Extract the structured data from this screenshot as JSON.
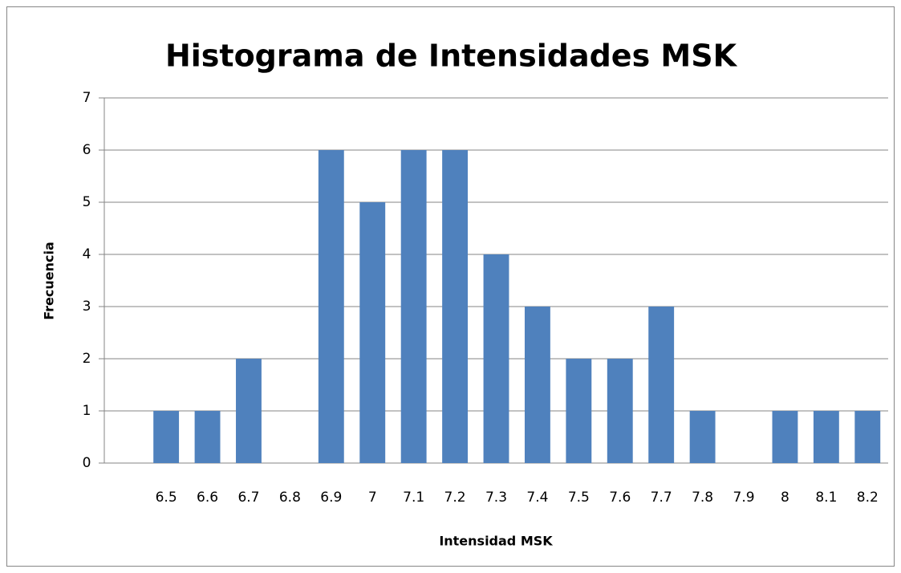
{
  "chart_data": {
    "type": "bar",
    "title": "Histograma de Intensidades MSK",
    "x_label": "Intensidad MSK",
    "y_label": "Frecuencia",
    "categories": [
      null,
      "6.5",
      "6.6",
      "6.7",
      "6.8",
      "6.9",
      "7",
      "7.1",
      "7.2",
      "7.3",
      "7.4",
      "7.5",
      "7.6",
      "7.7",
      "7.8",
      "7.9",
      "8",
      "8.1",
      "8.2"
    ],
    "values": [
      null,
      1,
      1,
      2,
      0,
      6,
      5,
      6,
      6,
      4,
      3,
      2,
      2,
      3,
      1,
      0,
      1,
      1,
      1
    ],
    "color": "#4f81bd",
    "ylim": [
      0,
      7
    ],
    "yticks": [
      0,
      1,
      2,
      3,
      4,
      5,
      6,
      7
    ],
    "grid": true
  }
}
